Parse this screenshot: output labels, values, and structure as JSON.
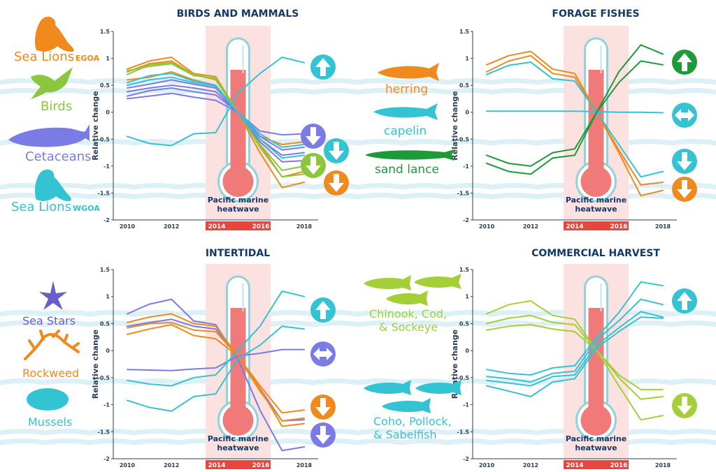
{
  "colors": {
    "orange": "#f08a1c",
    "green": "#8cc63e",
    "purple": "#7b7be6",
    "teal": "#33c3d3",
    "darkgreen": "#1f9a3a",
    "lime": "#a4cf38",
    "title": "#123a68",
    "heatwave_band": "#fbe1e0",
    "heatwave_bar": "#e8453c",
    "thermo_fill": "#f07a7a"
  },
  "common": {
    "heatwave_line1": "Pacific marine",
    "heatwave_line2": "heatwave",
    "ylabel": "Relative change",
    "year_2014": "2014",
    "year_2016": "2016"
  },
  "legend": {
    "sea_lions_egoa": "Sea Lions",
    "egoa_sub": "EGOA",
    "birds": "Birds",
    "cetaceans": "Cetaceans",
    "sea_lions_wgoa": "Sea Lions",
    "wgoa_sub": "WGOA",
    "herring": "herring",
    "capelin": "capelin",
    "sand_lance": "sand lance",
    "sea_stars": "Sea Stars",
    "rockweed": "Rockweed",
    "mussels": "Mussels",
    "chinook_1": "Chinook, Cod,",
    "chinook_2": "& Sockeye",
    "coho_1": "Coho, Pollock,",
    "coho_2": "& Sabelfish"
  },
  "chart_data": [
    {
      "type": "line",
      "title": "BIRDS AND MAMMALS",
      "ylabel": "Relative change",
      "x_ticks": [
        "2010",
        "2012",
        "2018"
      ],
      "y_ticks": [
        "1.5",
        "1",
        "0.5",
        "0",
        "-0.5",
        "-1",
        "-1.5",
        "-2"
      ],
      "ylim": [
        -2,
        1.5
      ],
      "x": [
        2010,
        2011,
        2012,
        2013,
        2014,
        2015,
        2016,
        2017,
        2018
      ],
      "series": [
        {
          "color": "orange",
          "values": [
            0.8,
            0.95,
            1.02,
            0.72,
            0.66,
            0.0,
            -0.75,
            -1.4,
            -1.3
          ]
        },
        {
          "color": "orange",
          "values": [
            0.75,
            0.9,
            0.95,
            0.7,
            0.62,
            0.0,
            -0.6,
            -1.2,
            -1.1
          ]
        },
        {
          "color": "orange",
          "values": [
            0.6,
            0.65,
            0.75,
            0.6,
            0.5,
            0.0,
            -0.45,
            -0.6,
            -0.55
          ]
        },
        {
          "color": "green",
          "values": [
            0.7,
            0.88,
            0.92,
            0.7,
            0.6,
            0.0,
            -0.65,
            -1.2,
            -1.15
          ]
        },
        {
          "color": "green",
          "values": [
            0.77,
            0.85,
            0.9,
            0.68,
            0.63,
            0.0,
            -0.6,
            -1.08,
            -1.0
          ]
        },
        {
          "color": "purple",
          "values": [
            0.45,
            0.52,
            0.6,
            0.52,
            0.45,
            0.0,
            -0.35,
            -0.42,
            -0.4
          ]
        },
        {
          "color": "purple",
          "values": [
            0.38,
            0.45,
            0.5,
            0.45,
            0.38,
            0.0,
            -0.45,
            -0.7,
            -0.65
          ]
        },
        {
          "color": "purple",
          "values": [
            0.3,
            0.4,
            0.45,
            0.38,
            0.32,
            0.0,
            -0.5,
            -0.8,
            -0.75
          ]
        },
        {
          "color": "purple",
          "values": [
            0.25,
            0.3,
            0.35,
            0.28,
            0.22,
            0.0,
            -0.55,
            -0.92,
            -0.9
          ]
        },
        {
          "color": "teal",
          "values": [
            0.5,
            0.6,
            0.65,
            0.55,
            0.48,
            0.0,
            -0.4,
            -0.65,
            -0.6
          ]
        },
        {
          "color": "teal",
          "values": [
            0.55,
            0.68,
            0.72,
            0.58,
            0.5,
            0.0,
            -0.5,
            -0.85,
            -0.8
          ]
        },
        {
          "color": "teal",
          "values": [
            -0.45,
            -0.58,
            -0.62,
            -0.4,
            -0.38,
            0.35,
            0.72,
            1.02,
            0.92
          ]
        }
      ],
      "arrows": [
        {
          "dir": "up",
          "color": "teal"
        },
        {
          "dir": "down",
          "color": "purple"
        },
        {
          "dir": "down",
          "color": "teal"
        },
        {
          "dir": "down",
          "color": "green"
        },
        {
          "dir": "down",
          "color": "orange"
        }
      ]
    },
    {
      "type": "line",
      "title": "FORAGE FISHES",
      "ylabel": "Relative change",
      "x_ticks": [
        "2010",
        "2012",
        "2018"
      ],
      "y_ticks": [
        "1.5",
        "1",
        "0.5",
        "0",
        "-0.5",
        "-1",
        "-1.5",
        "-2"
      ],
      "ylim": [
        -2,
        1.5
      ],
      "x": [
        2010,
        2011,
        2012,
        2013,
        2014,
        2015,
        2016,
        2017,
        2018
      ],
      "series": [
        {
          "color": "orange",
          "values": [
            0.88,
            1.05,
            1.13,
            0.8,
            0.72,
            0.0,
            -0.75,
            -1.55,
            -1.45
          ]
        },
        {
          "color": "orange",
          "values": [
            0.75,
            0.95,
            1.05,
            0.72,
            0.65,
            0.0,
            -0.7,
            -1.35,
            -1.3
          ]
        },
        {
          "color": "teal",
          "values": [
            0.7,
            0.87,
            0.93,
            0.62,
            0.58,
            0.0,
            -0.6,
            -1.2,
            -1.1
          ]
        },
        {
          "color": "teal",
          "values": [
            0.02,
            0.02,
            0.02,
            0.02,
            0.02,
            0.01,
            0.0,
            0.0,
            -0.01
          ]
        },
        {
          "color": "darkgreen",
          "values": [
            -0.8,
            -0.95,
            -1.0,
            -0.75,
            -0.68,
            0.0,
            0.75,
            1.25,
            1.08
          ]
        },
        {
          "color": "darkgreen",
          "values": [
            -0.95,
            -1.1,
            -1.15,
            -0.85,
            -0.8,
            0.0,
            0.55,
            0.95,
            0.88
          ]
        }
      ],
      "arrows": [
        {
          "dir": "up",
          "color": "darkgreen"
        },
        {
          "dir": "both",
          "color": "teal"
        },
        {
          "dir": "down",
          "color": "teal"
        },
        {
          "dir": "down",
          "color": "orange"
        }
      ]
    },
    {
      "type": "line",
      "title": "INTERTIDAL",
      "ylabel": "Relative change",
      "x_ticks": [
        "2010",
        "2012",
        "2018"
      ],
      "y_ticks": [
        "1.5",
        "1",
        "0.5",
        "0",
        "-0.5",
        "-1",
        "-1.5",
        "-2"
      ],
      "ylim": [
        -2,
        1.5
      ],
      "x": [
        2010,
        2011,
        2012,
        2013,
        2014,
        2015,
        2016,
        2017,
        2018
      ],
      "series": [
        {
          "color": "purple",
          "values": [
            0.68,
            0.86,
            0.95,
            0.55,
            0.48,
            -0.15,
            -1.1,
            -1.85,
            -1.78
          ]
        },
        {
          "color": "purple",
          "values": [
            -0.35,
            -0.36,
            -0.37,
            -0.34,
            -0.32,
            -0.1,
            -0.05,
            0.02,
            0.02
          ]
        },
        {
          "color": "purple",
          "values": [
            0.45,
            0.52,
            0.58,
            0.45,
            0.4,
            -0.1,
            -0.7,
            -1.3,
            -1.28
          ]
        },
        {
          "color": "orange",
          "values": [
            0.52,
            0.62,
            0.68,
            0.5,
            0.45,
            -0.1,
            -0.65,
            -1.15,
            -1.1
          ]
        },
        {
          "color": "orange",
          "values": [
            0.42,
            0.5,
            0.52,
            0.38,
            0.35,
            -0.1,
            -0.7,
            -1.4,
            -1.35
          ]
        },
        {
          "color": "orange",
          "values": [
            0.3,
            0.4,
            0.48,
            0.28,
            0.22,
            -0.1,
            -0.75,
            -1.3,
            -1.25
          ]
        },
        {
          "color": "teal",
          "values": [
            -0.55,
            -0.62,
            -0.65,
            -0.5,
            -0.45,
            0.0,
            0.45,
            1.1,
            1.0
          ]
        },
        {
          "color": "teal",
          "values": [
            -0.92,
            -1.05,
            -1.12,
            -0.85,
            -0.8,
            -0.15,
            0.1,
            0.45,
            0.4
          ]
        }
      ],
      "arrows": [
        {
          "dir": "up",
          "color": "teal"
        },
        {
          "dir": "both",
          "color": "purple"
        },
        {
          "dir": "down",
          "color": "orange"
        },
        {
          "dir": "down",
          "color": "purple"
        }
      ]
    },
    {
      "type": "line",
      "title": "COMMERCIAL HARVEST",
      "ylabel": "Relative change",
      "x_ticks": [
        "2010",
        "2012",
        "2018"
      ],
      "y_ticks": [
        "1.5",
        "1",
        "0.5",
        "0",
        "-0.5",
        "-1",
        "-1.5",
        "-2"
      ],
      "ylim": [
        -2,
        1.5
      ],
      "x": [
        2010,
        2011,
        2012,
        2013,
        2014,
        2015,
        2016,
        2017,
        2018
      ],
      "series": [
        {
          "color": "lime",
          "values": [
            0.68,
            0.85,
            0.92,
            0.65,
            0.58,
            0.0,
            -0.45,
            -0.72,
            -0.72
          ]
        },
        {
          "color": "lime",
          "values": [
            0.5,
            0.6,
            0.65,
            0.52,
            0.48,
            0.0,
            -0.5,
            -0.9,
            -0.85
          ]
        },
        {
          "color": "lime",
          "values": [
            0.38,
            0.45,
            0.48,
            0.4,
            0.35,
            0.0,
            -0.65,
            -1.28,
            -1.2
          ]
        },
        {
          "color": "teal",
          "values": [
            -0.35,
            -0.42,
            -0.45,
            -0.32,
            -0.28,
            0.25,
            0.7,
            1.27,
            1.2
          ]
        },
        {
          "color": "teal",
          "values": [
            -0.48,
            -0.52,
            -0.58,
            -0.42,
            -0.38,
            0.2,
            0.55,
            0.95,
            0.85
          ]
        },
        {
          "color": "teal",
          "values": [
            -0.55,
            -0.6,
            -0.65,
            -0.48,
            -0.45,
            0.1,
            0.42,
            0.72,
            0.62
          ]
        },
        {
          "color": "teal",
          "values": [
            -0.65,
            -0.75,
            -0.85,
            -0.58,
            -0.52,
            0.05,
            0.35,
            0.62,
            0.6
          ]
        }
      ],
      "arrows": [
        {
          "dir": "up",
          "color": "teal"
        },
        {
          "dir": "down",
          "color": "lime"
        }
      ]
    }
  ]
}
